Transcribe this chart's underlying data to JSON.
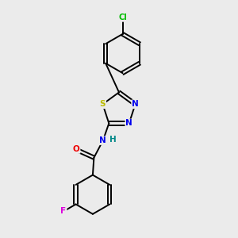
{
  "background_color": "#ebebeb",
  "bond_color": "#000000",
  "atom_colors": {
    "Cl": "#00bb00",
    "S": "#bbbb00",
    "N": "#0000ee",
    "O": "#ee0000",
    "F": "#dd00dd",
    "H": "#008888",
    "C": "#000000"
  },
  "figsize": [
    3.0,
    3.0
  ],
  "dpi": 100,
  "lw": 1.4,
  "font_size": 7.5
}
